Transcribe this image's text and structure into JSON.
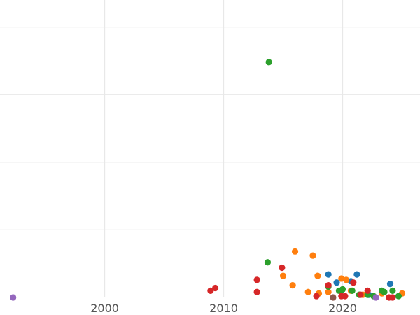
{
  "chart_data": {
    "type": "scatter",
    "title": "",
    "xlabel": "",
    "ylabel": "",
    "xlim": [
      1991.2,
      2026.5
    ],
    "ylim": [
      0,
      2.2
    ],
    "x_ticks": [
      2000,
      2010,
      2020
    ],
    "y_gridlines": [
      0.5,
      1.0,
      1.5,
      2.0
    ],
    "grid": true,
    "legend": "none",
    "series": [
      {
        "color": "#1f77b4",
        "points": [
          {
            "x": 2018.8,
            "y": 0.17
          },
          {
            "x": 2019.5,
            "y": 0.11
          },
          {
            "x": 2020.7,
            "y": 0.12
          },
          {
            "x": 2021.2,
            "y": 0.17
          },
          {
            "x": 2024.0,
            "y": 0.1
          },
          {
            "x": 2019.9,
            "y": 0.05
          },
          {
            "x": 2022.2,
            "y": 0.02
          }
        ]
      },
      {
        "color": "#ff7f0e",
        "points": [
          {
            "x": 2015.0,
            "y": 0.16
          },
          {
            "x": 2015.8,
            "y": 0.09
          },
          {
            "x": 2016.0,
            "y": 0.34
          },
          {
            "x": 2017.1,
            "y": 0.04
          },
          {
            "x": 2017.5,
            "y": 0.31
          },
          {
            "x": 2017.9,
            "y": 0.16
          },
          {
            "x": 2018.0,
            "y": 0.03
          },
          {
            "x": 2018.8,
            "y": 0.04
          },
          {
            "x": 2019.9,
            "y": 0.14
          },
          {
            "x": 2020.3,
            "y": 0.13
          },
          {
            "x": 2020.7,
            "y": 0.05
          },
          {
            "x": 2021.7,
            "y": 0.02
          },
          {
            "x": 2023.3,
            "y": 0.03
          },
          {
            "x": 2025.0,
            "y": 0.03
          }
        ]
      },
      {
        "color": "#2ca02c",
        "points": [
          {
            "x": 2013.8,
            "y": 1.74
          },
          {
            "x": 2013.7,
            "y": 0.26
          },
          {
            "x": 2018.8,
            "y": 0.08
          },
          {
            "x": 2019.7,
            "y": 0.05
          },
          {
            "x": 2020.0,
            "y": 0.06
          },
          {
            "x": 2020.8,
            "y": 0.05
          },
          {
            "x": 2021.4,
            "y": 0.02
          },
          {
            "x": 2022.1,
            "y": 0.02
          },
          {
            "x": 2022.6,
            "y": 0.01
          },
          {
            "x": 2023.3,
            "y": 0.05
          },
          {
            "x": 2023.5,
            "y": 0.04
          },
          {
            "x": 2024.2,
            "y": 0.05
          },
          {
            "x": 2024.7,
            "y": 0.01
          }
        ]
      },
      {
        "color": "#d62728",
        "points": [
          {
            "x": 2008.9,
            "y": 0.05
          },
          {
            "x": 2009.3,
            "y": 0.07
          },
          {
            "x": 2012.8,
            "y": 0.13
          },
          {
            "x": 2012.8,
            "y": 0.04
          },
          {
            "x": 2014.9,
            "y": 0.22
          },
          {
            "x": 2018.8,
            "y": 0.09
          },
          {
            "x": 2020.9,
            "y": 0.11
          },
          {
            "x": 2017.8,
            "y": 0.01
          },
          {
            "x": 2019.9,
            "y": 0.01
          },
          {
            "x": 2020.2,
            "y": 0.01
          },
          {
            "x": 2021.5,
            "y": 0.02
          },
          {
            "x": 2022.1,
            "y": 0.05
          },
          {
            "x": 2023.9,
            "y": 0.0
          },
          {
            "x": 2024.2,
            "y": 0.0
          }
        ]
      },
      {
        "color": "#9467bd",
        "points": [
          {
            "x": 1992.3,
            "y": 0.0
          },
          {
            "x": 2022.8,
            "y": 0.0
          }
        ]
      },
      {
        "color": "#8c564b",
        "points": [
          {
            "x": 2019.2,
            "y": 0.0
          }
        ]
      }
    ]
  }
}
